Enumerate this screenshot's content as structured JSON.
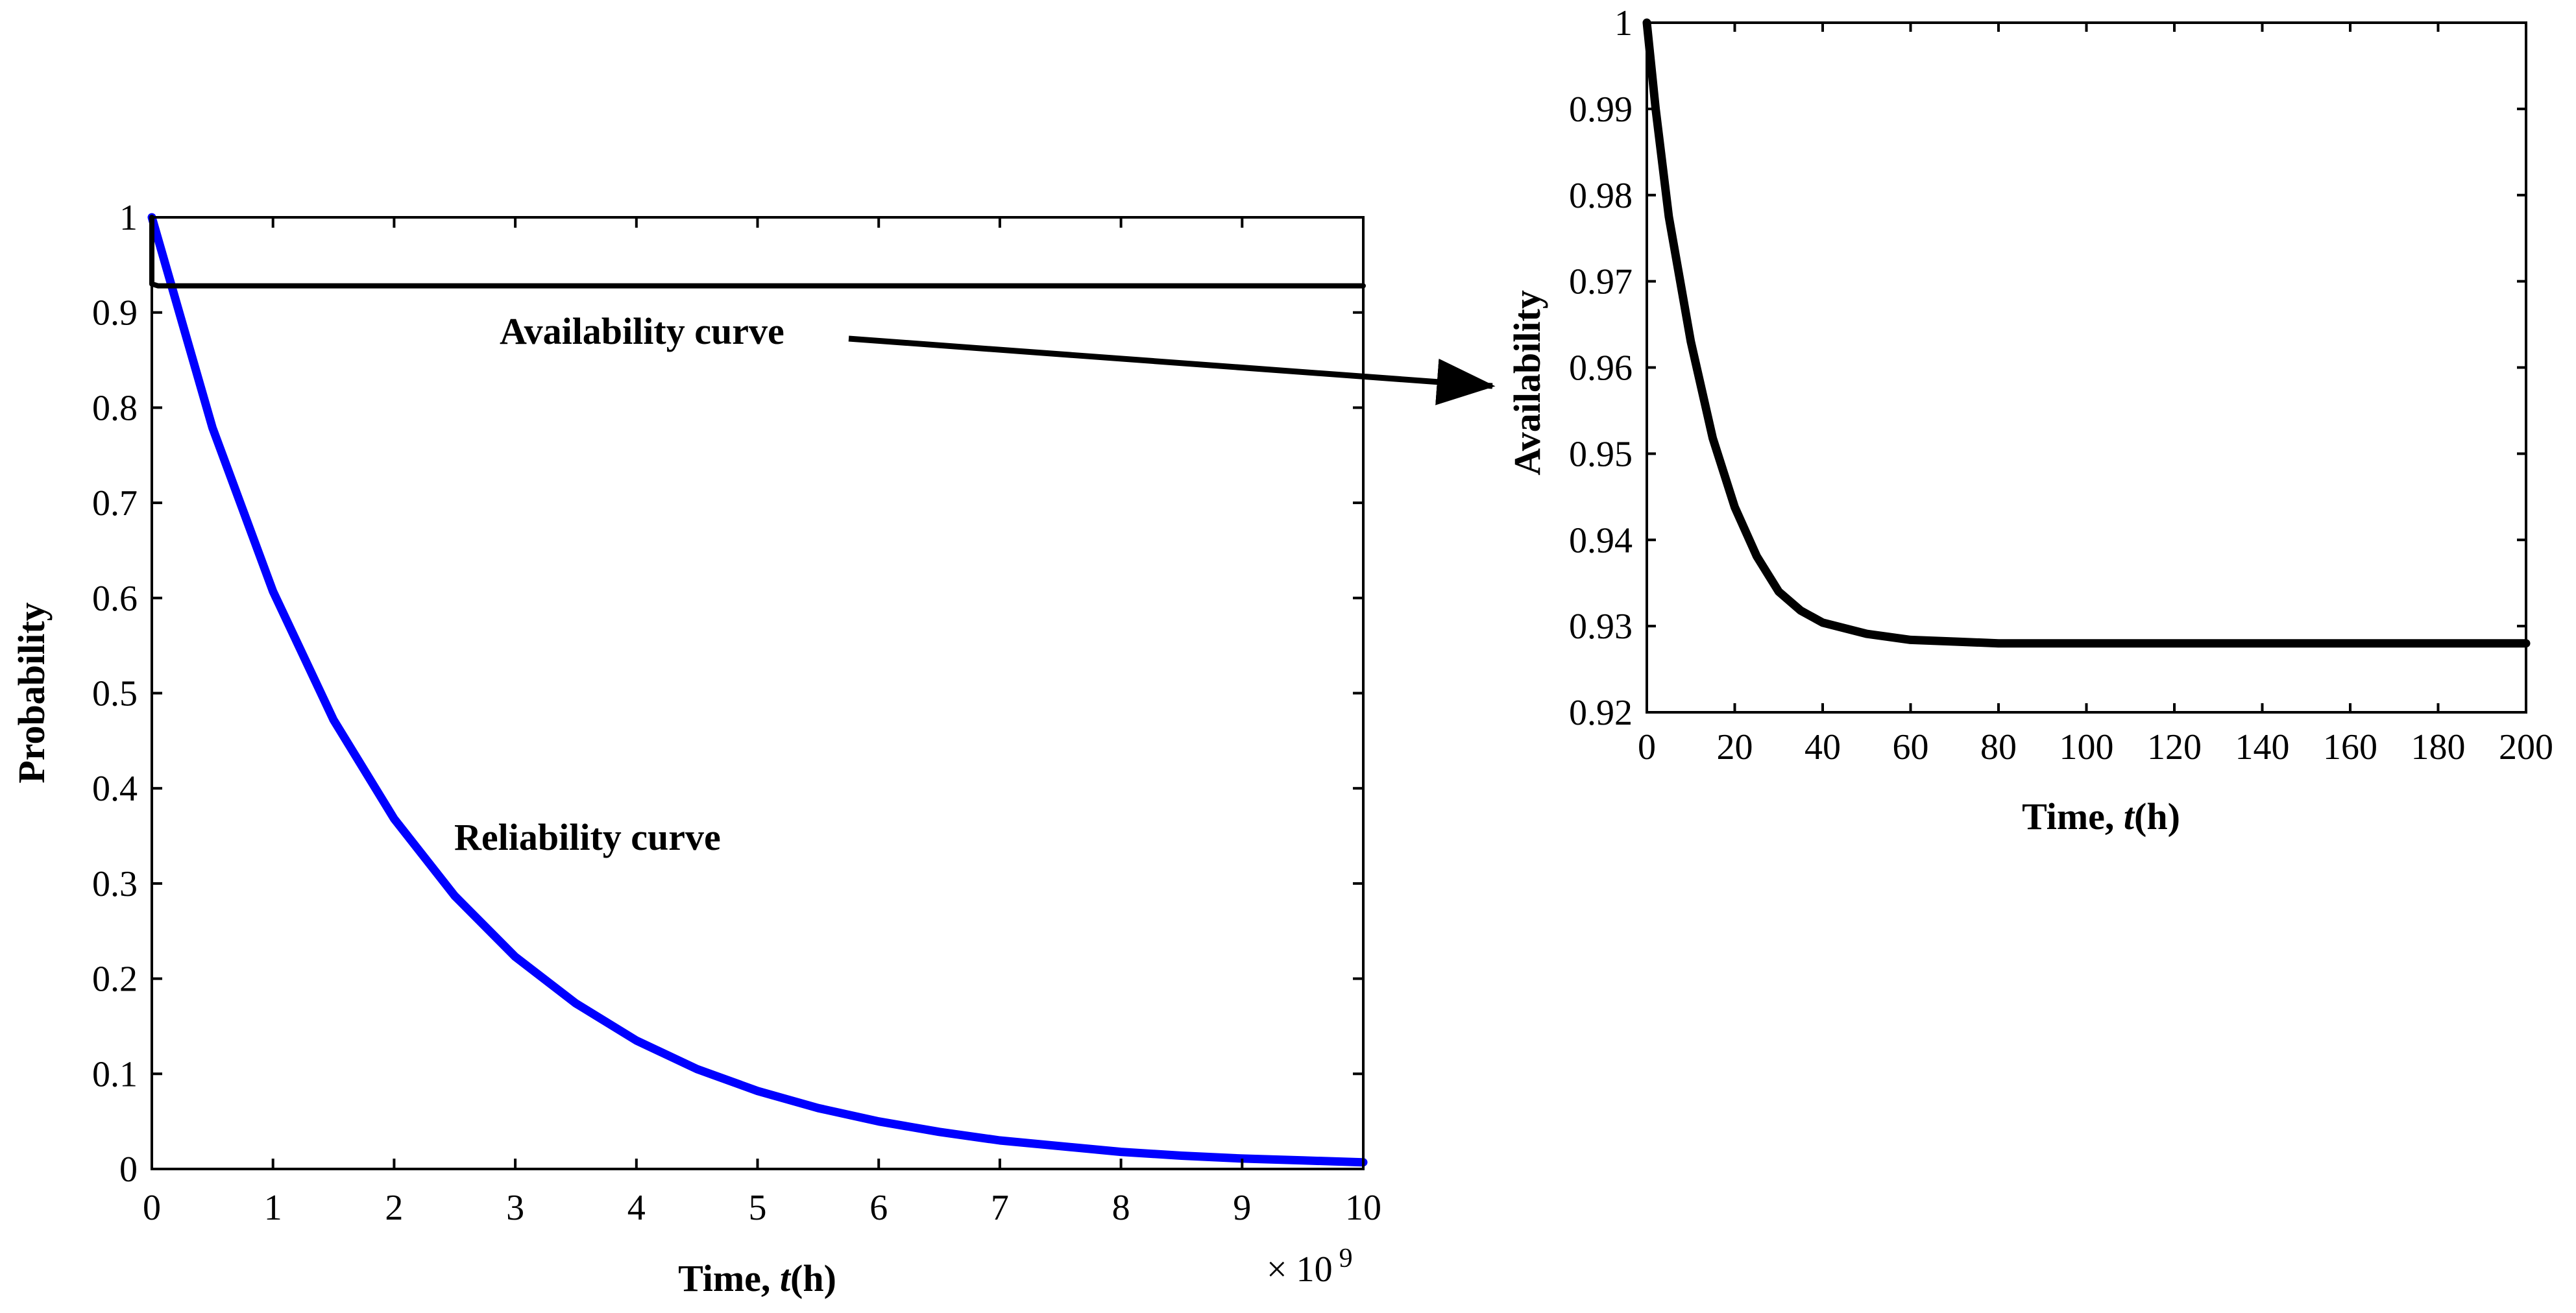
{
  "chart_data": [
    {
      "id": "main",
      "type": "line",
      "title": "",
      "xlabel_prefix": "Time, ",
      "xlabel_var": "t",
      "xlabel_suffix": "(h)",
      "ylabel": "Probability",
      "x_multiplier": "× 10",
      "x_multiplier_exp": "9",
      "xlim": [
        0,
        10
      ],
      "ylim": [
        0,
        1
      ],
      "x_ticks": [
        "0",
        "1",
        "2",
        "3",
        "4",
        "5",
        "6",
        "7",
        "8",
        "9",
        "10"
      ],
      "y_ticks": [
        "0",
        "0.1",
        "0.2",
        "0.3",
        "0.4",
        "0.5",
        "0.6",
        "0.7",
        "0.8",
        "0.9",
        "1"
      ],
      "series": [
        {
          "name": "Reliability curve",
          "color": "#0000ff",
          "x": [
            0,
            0.5,
            1,
            1.5,
            2,
            2.5,
            3,
            3.5,
            4,
            4.5,
            5,
            5.5,
            6,
            6.5,
            7,
            7.5,
            8,
            8.5,
            9,
            9.5,
            10
          ],
          "y": [
            1.0,
            0.779,
            0.607,
            0.472,
            0.368,
            0.287,
            0.223,
            0.174,
            0.135,
            0.105,
            0.082,
            0.064,
            0.05,
            0.039,
            0.03,
            0.024,
            0.018,
            0.014,
            0.011,
            0.009,
            0.007
          ]
        },
        {
          "name": "Availability curve",
          "color": "#000000",
          "x": [
            0,
            1e-05,
            0.05,
            10
          ],
          "y": [
            1.0,
            0.93,
            0.928,
            0.928
          ]
        }
      ],
      "annotations": [
        "Availability curve",
        "Reliability curve"
      ]
    },
    {
      "id": "zoom",
      "type": "line",
      "title": "",
      "xlabel_prefix": "Time, ",
      "xlabel_var": "t",
      "xlabel_suffix": "(h)",
      "ylabel": "Availability",
      "xlim": [
        0,
        200
      ],
      "ylim": [
        0.92,
        1
      ],
      "x_ticks": [
        "0",
        "20",
        "40",
        "60",
        "80",
        "100",
        "120",
        "140",
        "160",
        "180",
        "200"
      ],
      "y_ticks": [
        "0.92",
        "0.93",
        "0.94",
        "0.95",
        "0.96",
        "0.97",
        "0.98",
        "0.99",
        "1"
      ],
      "series": [
        {
          "name": "Availability",
          "color": "#000000",
          "x": [
            0,
            2,
            5,
            10,
            15,
            20,
            25,
            30,
            35,
            40,
            50,
            60,
            70,
            80,
            100,
            120,
            150,
            200
          ],
          "y": [
            1.0,
            0.99,
            0.9775,
            0.963,
            0.9518,
            0.9438,
            0.9381,
            0.934,
            0.9318,
            0.9304,
            0.9291,
            0.9284,
            0.9282,
            0.928,
            0.928,
            0.928,
            0.928,
            0.928
          ]
        }
      ]
    }
  ]
}
